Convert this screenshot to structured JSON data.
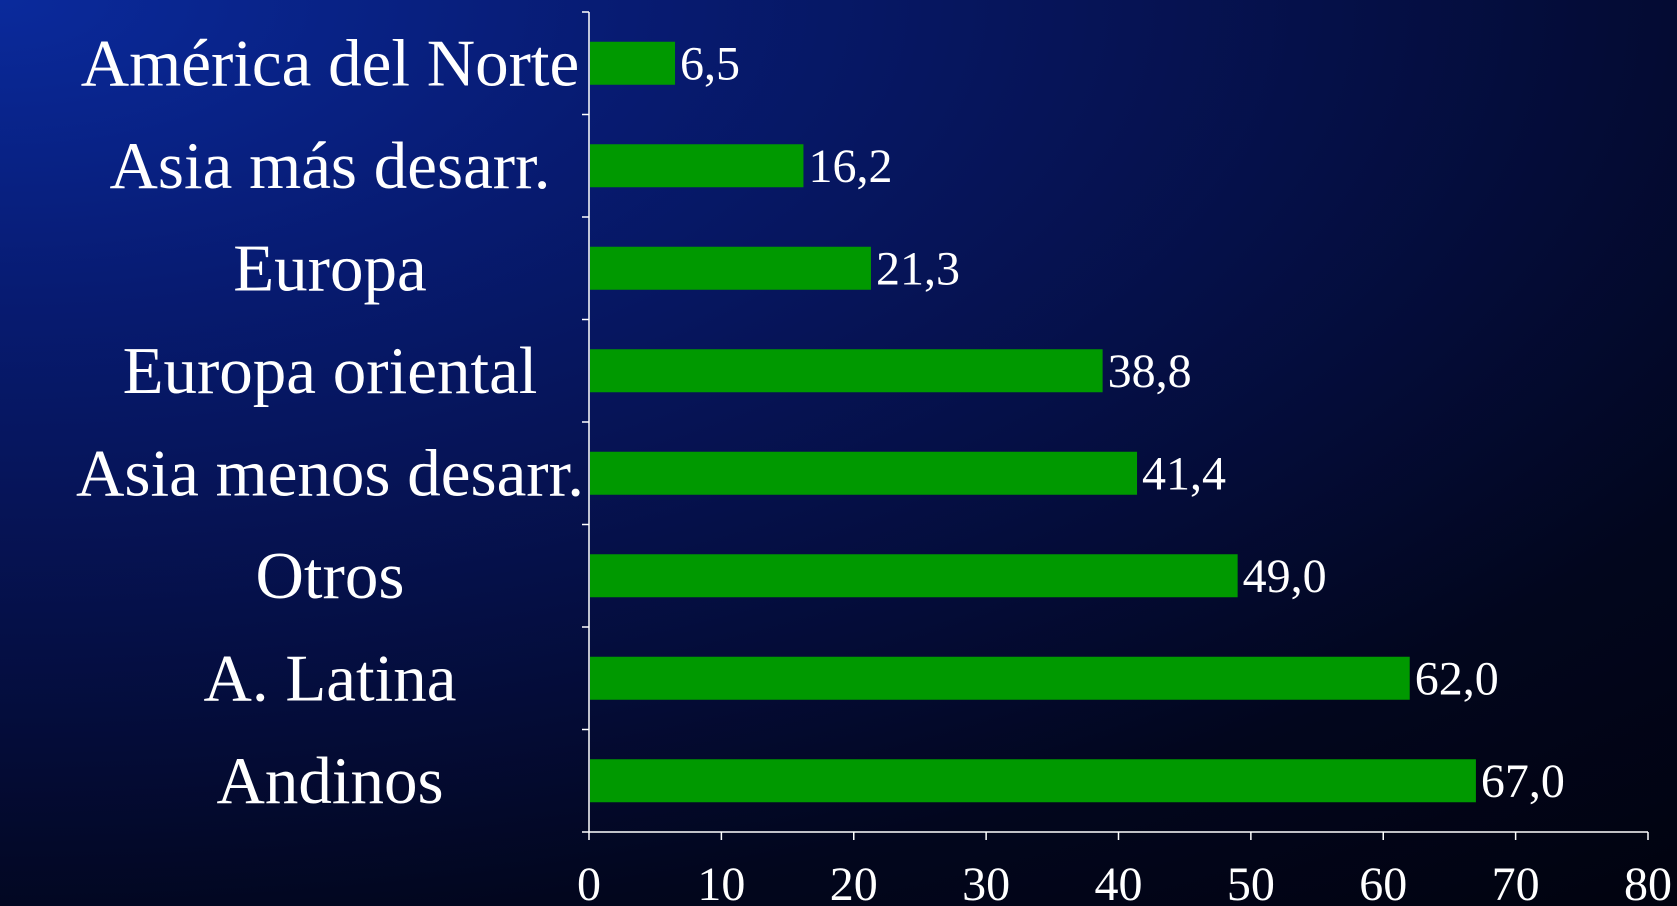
{
  "chart_data": {
    "type": "bar",
    "orientation": "horizontal",
    "categories": [
      "América del Norte",
      "Asia más desarr.",
      "Europa",
      "Europa oriental",
      "Asia menos desarr.",
      "Otros",
      "A. Latina",
      "Andinos"
    ],
    "values": [
      6.5,
      16.2,
      21.3,
      38.8,
      41.4,
      49.0,
      62.0,
      67.0
    ],
    "value_labels": [
      "6,5",
      "16,2",
      "21,3",
      "38,8",
      "41,4",
      "49,0",
      "62,0",
      "67,0"
    ],
    "x_ticks": [
      "0",
      "10",
      "20",
      "30",
      "40",
      "50",
      "60",
      "70",
      "80"
    ],
    "xlim": [
      0,
      80
    ],
    "title": "",
    "xlabel": "",
    "ylabel": "",
    "grid": false,
    "legend": "none",
    "colors": {
      "bar": "#009900",
      "axis": "#ffffff",
      "text": "#ffffff"
    }
  }
}
